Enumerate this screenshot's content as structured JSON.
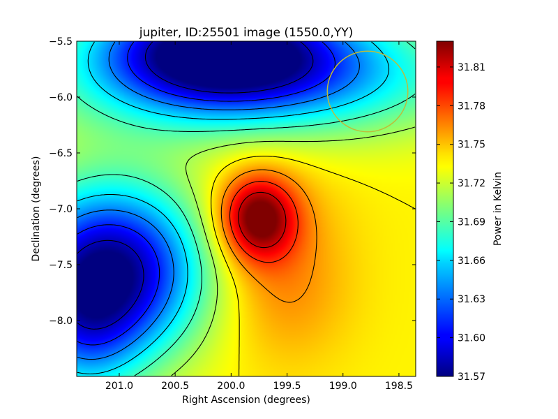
{
  "chart_data": {
    "type": "heatmap",
    "title": "jupiter, ID:25501 image (1550.0,YY)",
    "xlabel": "Right Ascension (degrees)",
    "ylabel": "Declination (degrees)",
    "colorbar_label": "Power in Kelvin",
    "x_ticks": [
      "201.0",
      "200.5",
      "200.0",
      "199.5",
      "199.0",
      "198.5"
    ],
    "x_tick_values": [
      201.0,
      200.5,
      200.0,
      199.5,
      199.0,
      198.5
    ],
    "xlim": [
      201.38,
      198.35
    ],
    "y_ticks": [
      "−5.5",
      "−6.0",
      "−6.5",
      "−7.0",
      "−7.5",
      "−8.0"
    ],
    "y_tick_values": [
      -5.5,
      -6.0,
      -6.5,
      -7.0,
      -7.5,
      -8.0
    ],
    "ylim": [
      -8.5,
      -5.5
    ],
    "colorbar_ticks": [
      "31.81",
      "31.78",
      "31.75",
      "31.72",
      "31.69",
      "31.66",
      "31.63",
      "31.60",
      "31.57"
    ],
    "colorbar_tick_values": [
      31.81,
      31.78,
      31.75,
      31.72,
      31.69,
      31.66,
      31.63,
      31.6,
      31.57
    ],
    "colorbar_range": [
      31.57,
      31.83
    ],
    "colormap": "jet",
    "contour_color": "#000000",
    "beam_circle": {
      "ra": 198.78,
      "dec": -5.95,
      "radius_deg": 0.36,
      "color": "#bdbd3a"
    },
    "features": [
      {
        "kind": "peak",
        "ra": 199.75,
        "dec": -7.1,
        "value": 31.83
      },
      {
        "kind": "min",
        "ra": 201.2,
        "dec": -7.55,
        "value": 31.57
      },
      {
        "kind": "min",
        "ra": 199.95,
        "dec": -5.55,
        "value": 31.57
      }
    ]
  }
}
